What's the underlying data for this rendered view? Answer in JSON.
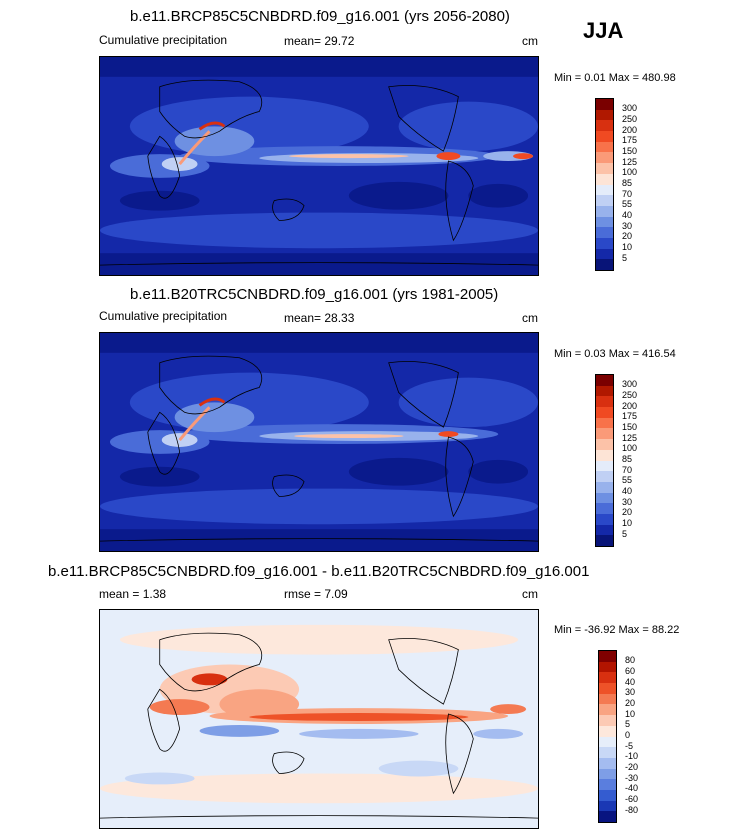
{
  "season": "JJA",
  "panels": [
    {
      "title": "b.e11.BRCP85C5CNBDRD.f09_g16.001 (yrs 2056-2080)",
      "left_label": "Cumulative precipitation",
      "mean_text": "mean=  29.72",
      "unit": "cm",
      "minmax": "Min =   0.01 Max = 480.98",
      "colorbar": {
        "labels": [
          "300",
          "250",
          "200",
          "175",
          "150",
          "125",
          "100",
          "85",
          "70",
          "55",
          "40",
          "30",
          "20",
          "10",
          "5"
        ],
        "colors": [
          "#7a0000",
          "#b01800",
          "#d83010",
          "#f04a22",
          "#f8724a",
          "#fa9a78",
          "#fcc2a8",
          "#fde4d6",
          "#e4ecfa",
          "#c0d0f4",
          "#98b2ec",
          "#6e90e2",
          "#4a6cd8",
          "#2a48c8",
          "#1428a8",
          "#081478"
        ]
      }
    },
    {
      "title": "b.e11.B20TRC5CNBDRD.f09_g16.001 (yrs 1981-2005)",
      "left_label": "Cumulative precipitation",
      "mean_text": "mean=  28.33",
      "unit": "cm",
      "minmax": "Min =   0.03 Max = 416.54",
      "colorbar": {
        "labels": [
          "300",
          "250",
          "200",
          "175",
          "150",
          "125",
          "100",
          "85",
          "70",
          "55",
          "40",
          "30",
          "20",
          "10",
          "5"
        ],
        "colors": [
          "#7a0000",
          "#b01800",
          "#d83010",
          "#f04a22",
          "#f8724a",
          "#fa9a78",
          "#fcc2a8",
          "#fde4d6",
          "#e4ecfa",
          "#c0d0f4",
          "#98b2ec",
          "#6e90e2",
          "#4a6cd8",
          "#2a48c8",
          "#1428a8",
          "#081478"
        ]
      }
    },
    {
      "title": "b.e11.BRCP85C5CNBDRD.f09_g16.001 - b.e11.B20TRC5CNBDRD.f09_g16.001",
      "left_label": "mean =    1.38",
      "mean_text": "rmse =    7.09",
      "unit": "cm",
      "minmax": "Min = -36.92  Max =  88.22",
      "colorbar": {
        "labels": [
          "80",
          "60",
          "40",
          "30",
          "20",
          "10",
          "5",
          "0",
          "-5",
          "-10",
          "-20",
          "-30",
          "-40",
          "-60",
          "-80"
        ],
        "colors": [
          "#800000",
          "#b21400",
          "#d83010",
          "#ee5228",
          "#f47a52",
          "#f9a482",
          "#fccab4",
          "#fde8dc",
          "#e6eefa",
          "#c8d8f6",
          "#a4bcf0",
          "#7e9ee6",
          "#5a7ede",
          "#345cd0",
          "#1a38b4",
          "#081480"
        ]
      }
    }
  ],
  "chart_data": [
    {
      "type": "heatmap",
      "title": "b.e11.BRCP85C5CNBDRD.f09_g16.001 (yrs 2056-2080)",
      "variable": "Cumulative precipitation",
      "season": "JJA",
      "unit": "cm",
      "mean": 29.72,
      "min": 0.01,
      "max": 480.98,
      "contour_levels": [
        5,
        10,
        20,
        30,
        40,
        55,
        70,
        85,
        100,
        125,
        150,
        175,
        200,
        250,
        300
      ]
    },
    {
      "type": "heatmap",
      "title": "b.e11.B20TRC5CNBDRD.f09_g16.001 (yrs 1981-2005)",
      "variable": "Cumulative precipitation",
      "season": "JJA",
      "unit": "cm",
      "mean": 28.33,
      "min": 0.03,
      "max": 416.54,
      "contour_levels": [
        5,
        10,
        20,
        30,
        40,
        55,
        70,
        85,
        100,
        125,
        150,
        175,
        200,
        250,
        300
      ]
    },
    {
      "type": "heatmap",
      "title": "b.e11.BRCP85C5CNBDRD.f09_g16.001 - b.e11.B20TRC5CNBDRD.f09_g16.001",
      "season": "JJA",
      "unit": "cm",
      "mean": 1.38,
      "rmse": 7.09,
      "min": -36.92,
      "max": 88.22,
      "contour_levels": [
        -80,
        -60,
        -40,
        -30,
        -20,
        -10,
        -5,
        0,
        5,
        10,
        20,
        30,
        40,
        60,
        80
      ]
    }
  ]
}
